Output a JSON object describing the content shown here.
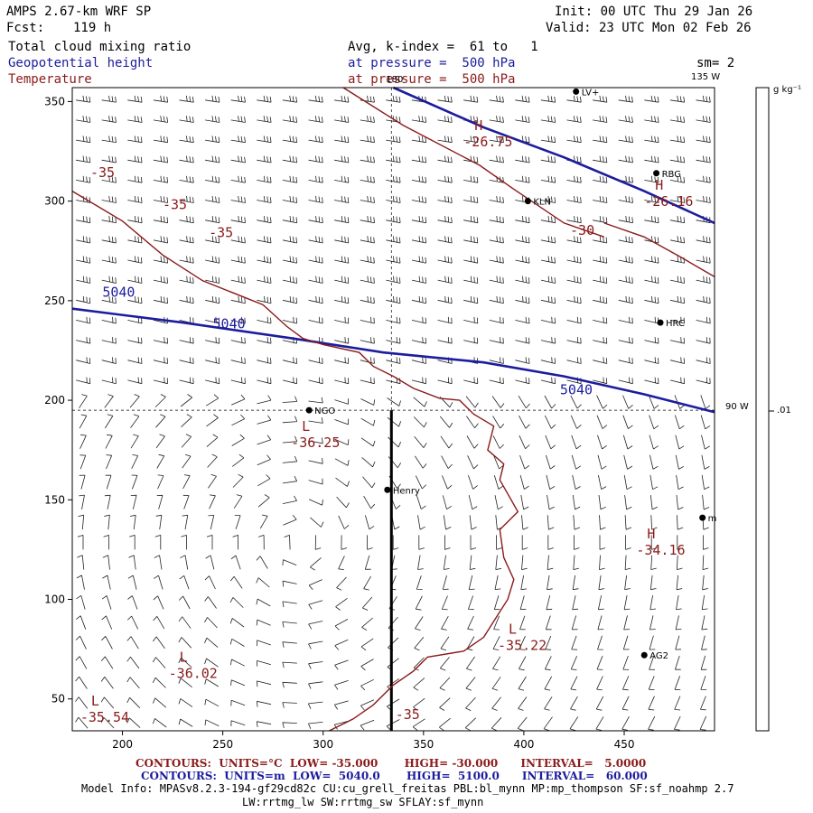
{
  "header": {
    "title": "AMPS 2.67-km WRF SP",
    "fcst_label": "Fcst:",
    "fcst_value": "119 h",
    "init": "Init: 00 UTC Thu 29 Jan 26",
    "valid": "Valid: 23 UTC Mon 02 Feb 26",
    "field1": "Total cloud mixing ratio",
    "field2": "Geopotential height",
    "field3": "Temperature",
    "avg_line": "Avg, k-index =  61 to   1",
    "pressure_line_blue": "at pressure =  500 hPa",
    "pressure_line_red": "at pressure =  500 hPa",
    "sm": "sm= 2"
  },
  "colorbar": {
    "units": "g kg⁻¹",
    "tick": ".01"
  },
  "footer": {
    "contours_red": "CONTOURS:  UNITS=°C  LOW= -35.000       HIGH= -30.000      INTERVAL=   5.0000",
    "contours_blue": "CONTOURS:  UNITS=m  LOW=  5040.0       HIGH=  5100.0      INTERVAL=   60.000",
    "model_info": "Model Info: MPASv8.2.3-194-gf29cd82c CU:cu_grell_freitas PBL:bl_mynn MP:mp_thompson SF:sf_noahmp 2.7",
    "model_info2": "LW:rrtmg_lw SW:rrtmg_sw SFLAY:sf_mynn"
  },
  "colors": {
    "blue": "#1c1c9e",
    "red": "#8b1a1a",
    "black": "#000000"
  },
  "chart_data": {
    "type": "map",
    "title": "AMPS 2.67-km WRF SP 500 hPa geopotential height, temperature, wind barbs",
    "x_ticks": [
      200,
      250,
      300,
      350,
      400,
      450
    ],
    "y_ticks": [
      50,
      100,
      150,
      200,
      250,
      300,
      350
    ],
    "xlim": [
      175,
      495
    ],
    "ylim": [
      34,
      357
    ],
    "meridians": [
      {
        "label": "180",
        "x": 334
      },
      {
        "label": "135 W",
        "x": 490
      },
      {
        "label": "90 W",
        "y": 195
      }
    ],
    "stations": [
      {
        "name": "LV+",
        "x": 426,
        "y": 355
      },
      {
        "name": "RBG",
        "x": 466,
        "y": 314
      },
      {
        "name": "KLN",
        "x": 402,
        "y": 300
      },
      {
        "name": "HRC",
        "x": 468,
        "y": 239
      },
      {
        "name": "NGO",
        "x": 293,
        "y": 195
      },
      {
        "name": "Henry",
        "x": 332,
        "y": 155
      },
      {
        "name": "m",
        "x": 489,
        "y": 141
      },
      {
        "name": "AG2",
        "x": 460,
        "y": 72
      }
    ],
    "height_contours": [
      {
        "label": "5040",
        "points": [
          [
            175,
            246
          ],
          [
            230,
            239
          ],
          [
            285,
            231
          ],
          [
            330,
            224
          ],
          [
            380,
            219
          ],
          [
            420,
            212
          ],
          [
            460,
            203
          ],
          [
            495,
            194
          ]
        ]
      },
      {
        "label": "",
        "points": [
          [
            335,
            357
          ],
          [
            380,
            337
          ],
          [
            420,
            322
          ],
          [
            460,
            305
          ],
          [
            495,
            289
          ]
        ]
      }
    ],
    "height_labels": [
      {
        "text": "5040",
        "x": 190,
        "y": 252
      },
      {
        "text": "5040",
        "x": 245,
        "y": 236
      },
      {
        "text": "5040",
        "x": 418,
        "y": 203
      }
    ],
    "temperature_contours": [
      {
        "label": "-35",
        "points": [
          [
            175,
            305
          ],
          [
            200,
            290
          ],
          [
            220,
            273
          ],
          [
            240,
            260
          ],
          [
            270,
            248
          ],
          [
            282,
            237
          ],
          [
            290,
            231
          ],
          [
            300,
            228
          ],
          [
            318,
            224
          ],
          [
            325,
            217
          ],
          [
            335,
            212
          ],
          [
            345,
            206
          ],
          [
            358,
            201
          ],
          [
            368,
            200
          ],
          [
            375,
            193
          ],
          [
            385,
            187
          ],
          [
            382,
            175
          ],
          [
            390,
            168
          ],
          [
            388,
            160
          ],
          [
            392,
            153
          ],
          [
            397,
            144
          ],
          [
            388,
            135
          ],
          [
            390,
            121
          ],
          [
            395,
            110
          ],
          [
            392,
            100
          ],
          [
            385,
            89
          ],
          [
            380,
            81
          ],
          [
            370,
            74
          ],
          [
            352,
            71
          ],
          [
            345,
            64
          ],
          [
            335,
            57
          ],
          [
            325,
            47
          ],
          [
            315,
            40
          ],
          [
            303,
            34
          ]
        ]
      },
      {
        "label": "-30",
        "points": [
          [
            310,
            357
          ],
          [
            340,
            338
          ],
          [
            378,
            318
          ],
          [
            395,
            306
          ],
          [
            420,
            289
          ],
          [
            440,
            282
          ]
        ]
      },
      {
        "label": "",
        "points": [
          [
            440,
            289
          ],
          [
            460,
            282
          ],
          [
            478,
            272
          ],
          [
            495,
            262
          ]
        ]
      }
    ],
    "temperature_labels": [
      {
        "text": "-35",
        "x": 184,
        "y": 312
      },
      {
        "text": "-35",
        "x": 220,
        "y": 296
      },
      {
        "text": "-35",
        "x": 243,
        "y": 282
      },
      {
        "text": "-30",
        "x": 423,
        "y": 283
      },
      {
        "text": "-35",
        "x": 336,
        "y": 40
      }
    ],
    "extrema": [
      {
        "type": "H",
        "value": "-26.75",
        "x": 370,
        "y": 333,
        "color": "red"
      },
      {
        "type": "H",
        "value": "-26.16",
        "x": 460,
        "y": 303,
        "color": "red"
      },
      {
        "type": "L",
        "value": "-36.25",
        "x": 284,
        "y": 182,
        "color": "red"
      },
      {
        "type": "H",
        "value": "-34.16",
        "x": 456,
        "y": 128,
        "color": "red"
      },
      {
        "type": "L",
        "value": "-35.22",
        "x": 387,
        "y": 80,
        "color": "red"
      },
      {
        "type": "L",
        "value": "-36.02",
        "x": 223,
        "y": 66,
        "color": "red"
      },
      {
        "type": "L",
        "value": "-35.54",
        "x": 179,
        "y": 44,
        "color": "red"
      }
    ],
    "cross_section": {
      "x": 334,
      "y_from": 34,
      "y_to": 195
    }
  }
}
